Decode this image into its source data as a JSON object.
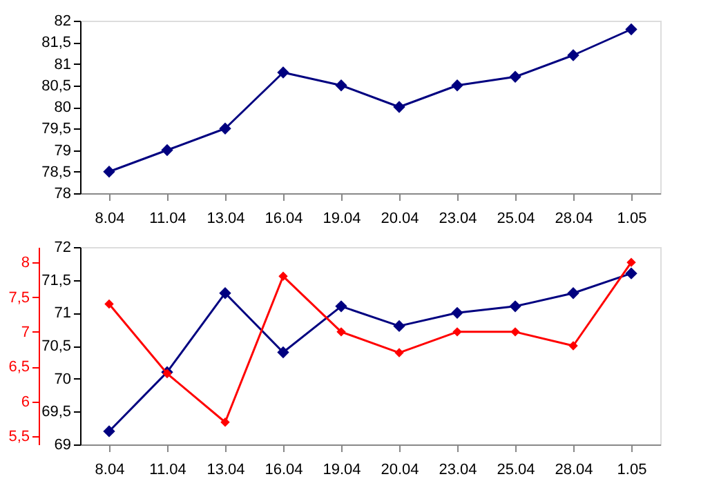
{
  "chart_data": [
    {
      "type": "line",
      "categories": [
        "8.04",
        "11.04",
        "13.04",
        "16.04",
        "19.04",
        "20.04",
        "23.04",
        "25.04",
        "28.04",
        "1.05"
      ],
      "series": [
        {
          "color": "#000080",
          "values": [
            78.5,
            79.0,
            79.5,
            80.8,
            80.5,
            80.0,
            80.5,
            80.7,
            81.2,
            81.8
          ]
        }
      ],
      "ylim": [
        78,
        82
      ],
      "yticks": [
        78,
        {
          "value": 78.5,
          "label": "78,5"
        },
        79,
        {
          "value": 79.5,
          "label": "79,5"
        },
        80,
        {
          "value": 80.5,
          "label": "80,5"
        },
        81,
        {
          "value": 81.5,
          "label": "81,5"
        },
        82
      ],
      "grid": false,
      "marker": "diamond",
      "line_style": "solid"
    },
    {
      "type": "line",
      "categories": [
        "8.04",
        "11.04",
        "13.04",
        "16.04",
        "19.04",
        "20.04",
        "23.04",
        "25.04",
        "28.04",
        "1.05"
      ],
      "series": [
        {
          "color": "#000080",
          "values": [
            69.2,
            70.1,
            71.3,
            70.4,
            71.1,
            70.8,
            71.0,
            71.1,
            71.3,
            71.6
          ]
        },
        {
          "color": "#ff0000",
          "axis": "y2",
          "values": [
            7.4,
            6.4,
            5.7,
            7.8,
            7.0,
            6.7,
            7.0,
            7.0,
            6.8,
            8.0
          ]
        }
      ],
      "ylim": [
        69,
        72
      ],
      "yticks": [
        69,
        {
          "value": 69.5,
          "label": "69,5"
        },
        70,
        {
          "value": 70.5,
          "label": "70,5"
        },
        71,
        {
          "value": 71.5,
          "label": "71,5"
        },
        72
      ],
      "y2lim": [
        5.38,
        8.22
      ],
      "y2ticks": [
        {
          "value": 5.5,
          "label": "5,5"
        },
        6,
        {
          "value": 6.5,
          "label": "6,5"
        },
        7,
        {
          "value": 7.5,
          "label": "7,5"
        },
        8
      ],
      "grid": false,
      "marker": "diamond",
      "line_style": "solid"
    }
  ]
}
